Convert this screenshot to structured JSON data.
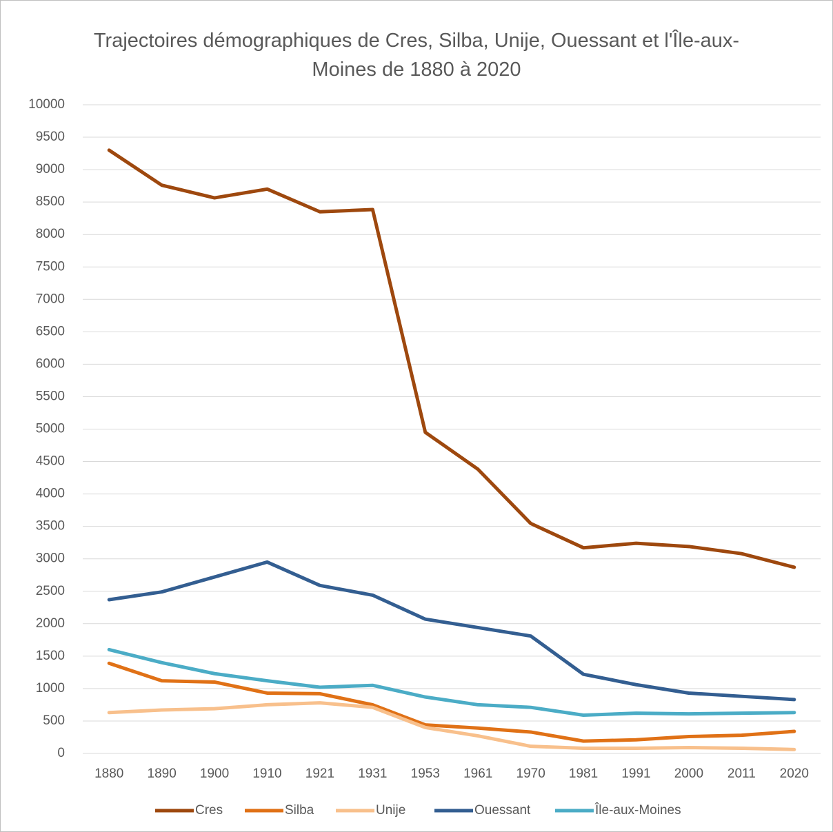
{
  "chart_data": {
    "type": "line",
    "title": "Trajectoires démographiques de Cres, Silba, Unije, Ouessant et l'Île-aux-Moines de 1880 à 2020",
    "categories": [
      "1880",
      "1890",
      "1900",
      "1910",
      "1921",
      "1931",
      "1953",
      "1961",
      "1970",
      "1981",
      "1991",
      "2000",
      "2011",
      "2020"
    ],
    "series": [
      {
        "name": "Cres",
        "color": "#9e480e",
        "values": [
          9300,
          8760,
          8565,
          8700,
          8350,
          8385,
          4950,
          4380,
          3545,
          3170,
          3240,
          3190,
          3080,
          2870
        ]
      },
      {
        "name": "Silba",
        "color": "#e07116",
        "values": [
          1390,
          1120,
          1100,
          930,
          920,
          750,
          440,
          390,
          330,
          190,
          210,
          260,
          280,
          340
        ]
      },
      {
        "name": "Unije",
        "color": "#f8c08c",
        "values": [
          630,
          670,
          690,
          750,
          780,
          710,
          400,
          270,
          110,
          80,
          80,
          90,
          80,
          60
        ]
      },
      {
        "name": "Ouessant",
        "color": "#335e91",
        "values": [
          2370,
          2490,
          2720,
          2950,
          2590,
          2440,
          2070,
          1940,
          1810,
          1220,
          1060,
          930,
          880,
          830
        ]
      },
      {
        "name": "Île-aux-Moines",
        "color": "#4bacc6",
        "values": [
          1600,
          1400,
          1230,
          1120,
          1020,
          1050,
          870,
          750,
          710,
          590,
          620,
          610,
          620,
          630
        ]
      }
    ],
    "ylim": [
      0,
      10000
    ],
    "yticks": [
      0,
      500,
      1000,
      1500,
      2000,
      2500,
      3000,
      3500,
      4000,
      4500,
      5000,
      5500,
      6000,
      6500,
      7000,
      7500,
      8000,
      8500,
      9000,
      9500,
      10000
    ],
    "grid": true,
    "legend": "bottom"
  }
}
